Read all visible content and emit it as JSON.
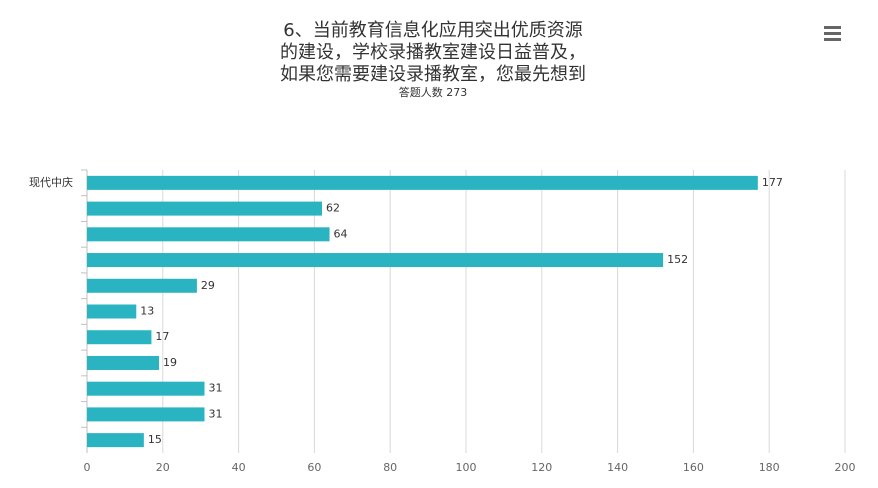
{
  "chart_data": {
    "type": "bar",
    "orientation": "horizontal",
    "title": [
      "6、当前教育信息化应用突出优质资源",
      "的建设，学校录播教室建设日益普及，",
      "如果您需要建设录播教室，您最先想到"
    ],
    "subtitle": "答题人数 273",
    "categories": [
      "现代中庆",
      null,
      null,
      null,
      null,
      null,
      null,
      null,
      null,
      null,
      null
    ],
    "values": [
      177,
      62,
      64,
      152,
      29,
      13,
      17,
      19,
      31,
      31,
      15
    ],
    "color": "#2ab3c0",
    "xlim": [
      0,
      200
    ],
    "xticks": [
      0,
      20,
      40,
      60,
      80,
      100,
      120,
      140,
      160,
      180,
      200
    ],
    "grid": true
  }
}
